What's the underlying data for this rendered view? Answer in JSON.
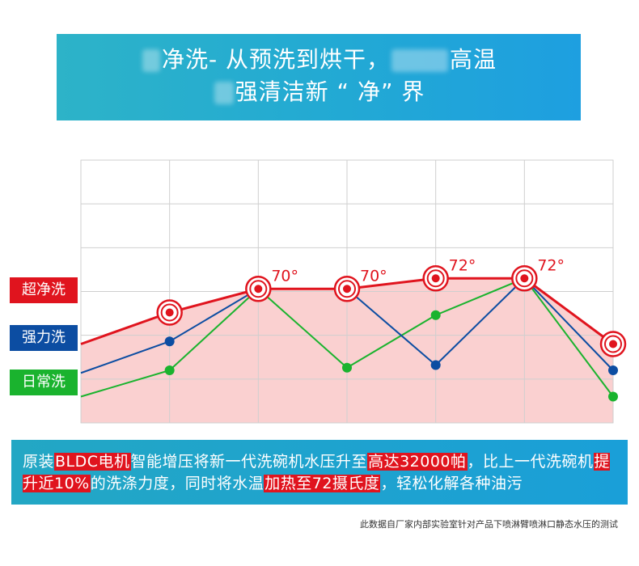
{
  "banner": {
    "line1_a": "净洗- 从预洗到烘干，",
    "line1_b": "高温",
    "line2_a": "强清洁新 “ 净” 界"
  },
  "legend": [
    {
      "label": "超净洗",
      "color": "#e0141e"
    },
    {
      "label": "强力洗",
      "color": "#0c4da2"
    },
    {
      "label": "日常洗",
      "color": "#1ab32e"
    }
  ],
  "chart_data": {
    "type": "line",
    "x": [
      0,
      1,
      2,
      3,
      4,
      5,
      6
    ],
    "ylim": [
      0,
      100
    ],
    "series": [
      {
        "name": "超净洗",
        "values": [
          30,
          42,
          51,
          51,
          55,
          55,
          30
        ],
        "color": "#e0141e",
        "fill": "#f9c8c8"
      },
      {
        "name": "强力洗",
        "values": [
          19,
          31,
          51,
          51,
          22,
          55,
          20
        ],
        "color": "#0c4da2"
      },
      {
        "name": "日常洗",
        "values": [
          10,
          20,
          51,
          21,
          41,
          55,
          10
        ],
        "color": "#1ab32e"
      }
    ],
    "annotations": [
      {
        "index": 2,
        "text": "70°"
      },
      {
        "index": 3,
        "text": "70°"
      },
      {
        "index": 4,
        "text": "72°"
      },
      {
        "index": 5,
        "text": "72°"
      }
    ],
    "grid": true,
    "legend_position": "left"
  },
  "info": {
    "t1": "原装",
    "h1": "BLDC电机",
    "t2": "智能增压将新一代洗碗机水压升至",
    "h2": "高达32000帕",
    "t3": "，比上一代洗碗机",
    "h3": "提升近10%",
    "t4": "的洗涤力度，同时将水温",
    "h4": "加热至72摄氏度",
    "t5": "，轻松化解各种油污"
  },
  "footnote": "此数据自厂家内部实验室针对产品下喷淋臂喷淋口静态水压的测试"
}
